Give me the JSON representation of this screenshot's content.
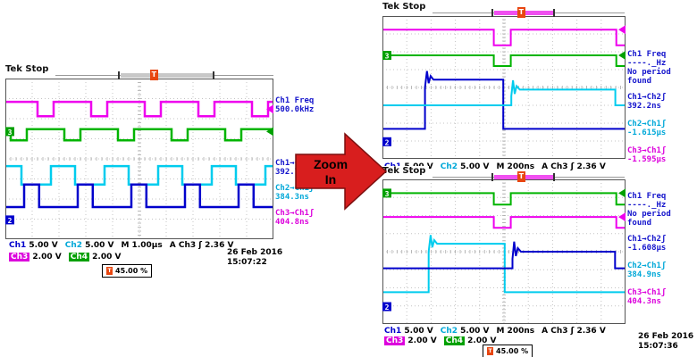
{
  "figure": {
    "arrow": {
      "line1": "Zoom",
      "line2": "In",
      "fill": "#d81e1e",
      "outline": "#7c0f0f"
    }
  },
  "scopes": [
    {
      "name": "full-view",
      "header_label": "Tek Stop",
      "topbar": {
        "seg_from": 0.3,
        "seg_to": 0.72,
        "seg_color": "#c8c8c8",
        "trigger_x": 0.45
      },
      "readouts": [
        {
          "color": "#1414cc",
          "lines": [
            "Ch1 Freq",
            "500.0kHz"
          ]
        },
        {
          "color": "#1414cc",
          "lines": [
            "Ch1→Ch2ʃ",
            "392.7ns"
          ]
        },
        {
          "color": "#00a8d8",
          "lines": [
            "Ch2→Ch1ʃ",
            "384.3ns"
          ]
        },
        {
          "color": "#dc00dc",
          "lines": [
            "Ch3→Ch1ʃ",
            "404.8ns"
          ]
        }
      ],
      "status": {
        "ch1_label": "Ch1",
        "ch1_scale": "5.00 V",
        "ch2_label": "Ch2",
        "ch2_scale": "5.00 V",
        "timebase": "M 1.00µs",
        "trigger": "A Ch3 ʃ 2.36 V",
        "ch3_label": "Ch3",
        "ch3_scale": "2.00 V",
        "ch4_label": "Ch4",
        "ch4_scale": "2.00 V",
        "trig_pos": "45.00 %",
        "date": "26 Feb 2016",
        "time": "15:07:22"
      },
      "plot": {
        "traces": [
          {
            "channel": "Ch4",
            "type": "square",
            "color": "#ee00ee",
            "yHigh": 0.145,
            "yLow": 0.235,
            "period": 0.2,
            "duty": 0.7,
            "phase": 0.1,
            "width": 2.5
          },
          {
            "channel": "Ch3",
            "type": "square",
            "color": "#00b400",
            "yHigh": 0.315,
            "yLow": 0.385,
            "period": 0.2,
            "duty": 0.7,
            "phase": 0.6,
            "width": 2.5
          },
          {
            "channel": "Ch2",
            "type": "square",
            "color": "#00ccee",
            "yHigh": 0.545,
            "yLow": 0.66,
            "period": 0.2,
            "duty": 0.45,
            "phase": 0.15,
            "width": 2.5
          },
          {
            "channel": "Ch1",
            "type": "square",
            "color": "#0000cc",
            "yHigh": 0.66,
            "yLow": 0.8,
            "period": 0.2,
            "duty": 0.28,
            "phase": 0.65,
            "width": 2.5
          }
        ],
        "left_markers": [
          {
            "label": "3",
            "color": "#00a000",
            "y": 0.33
          },
          {
            "label": "2",
            "color": "#0000cc",
            "y": 0.88
          }
        ],
        "right_markers": [
          {
            "color": "#ee00ee",
            "y": 0.19
          },
          {
            "color": "#00a000",
            "y": 0.33
          }
        ]
      }
    },
    {
      "name": "zoom-top",
      "header_label": "Tek Stop",
      "topbar": {
        "seg_from": 0.32,
        "seg_to": 0.63,
        "seg_color": "#f050f0",
        "trigger_x": 0.46
      },
      "readouts": [
        {
          "color": "#1414cc",
          "lines": [
            "Ch1 Freq",
            "----._Hz",
            "No period",
            "found"
          ]
        },
        {
          "color": "#1414cc",
          "lines": [
            "Ch1→Ch2ʃ",
            "392.2ns"
          ]
        },
        {
          "color": "#00a8d8",
          "lines": [
            "Ch2→Ch1ʃ",
            "-1.615µs"
          ]
        },
        {
          "color": "#dc00dc",
          "lines": [
            "Ch3→Ch1ʃ",
            "-1.595µs"
          ]
        }
      ],
      "status": {
        "ch1_label": "Ch1",
        "ch1_scale": "5.00 V",
        "ch2_label": "Ch2",
        "ch2_scale": "5.00 V",
        "timebase": "M 200ns",
        "trigger": "A Ch3 ʃ 2.36 V"
      },
      "plot": {
        "traces": [
          {
            "channel": "Ch4",
            "type": "points",
            "color": "#ee00ee",
            "width": 2,
            "points": [
              [
                0,
                0.095
              ],
              [
                0.458,
                0.095
              ],
              [
                0.458,
                0.205
              ],
              [
                0.528,
                0.205
              ],
              [
                0.528,
                0.095
              ],
              [
                0.962,
                0.095
              ],
              [
                0.962,
                0.205
              ],
              [
                1,
                0.205
              ]
            ]
          },
          {
            "channel": "Ch3",
            "type": "points",
            "color": "#00b400",
            "width": 2,
            "points": [
              [
                0,
                0.275
              ],
              [
                0.458,
                0.275
              ],
              [
                0.458,
                0.35
              ],
              [
                0.528,
                0.35
              ],
              [
                0.528,
                0.275
              ],
              [
                0.962,
                0.275
              ],
              [
                0.962,
                0.35
              ],
              [
                1,
                0.35
              ]
            ]
          },
          {
            "channel": "Ch1",
            "type": "points",
            "color": "#0000cc",
            "width": 2,
            "points": [
              [
                0,
                0.79
              ],
              [
                0.175,
                0.79
              ],
              [
                0.175,
                0.5
              ],
              [
                0.183,
                0.385
              ],
              [
                0.19,
                0.47
              ],
              [
                0.198,
                0.42
              ],
              [
                0.21,
                0.445
              ],
              [
                0.497,
                0.445
              ],
              [
                0.497,
                0.79
              ],
              [
                1,
                0.79
              ]
            ]
          },
          {
            "channel": "Ch2",
            "type": "points",
            "color": "#00ccee",
            "width": 2,
            "points": [
              [
                0,
                0.625
              ],
              [
                0.53,
                0.625
              ],
              [
                0.53,
                0.56
              ],
              [
                0.537,
                0.45
              ],
              [
                0.544,
                0.545
              ],
              [
                0.552,
                0.49
              ],
              [
                0.565,
                0.515
              ],
              [
                0.958,
                0.515
              ],
              [
                0.958,
                0.625
              ],
              [
                1,
                0.625
              ]
            ]
          }
        ],
        "left_markers": [
          {
            "label": "3",
            "color": "#00a000",
            "y": 0.275
          },
          {
            "label": "2",
            "color": "#0000cc",
            "y": 0.88
          }
        ],
        "right_markers": [
          {
            "color": "#ee00ee",
            "y": 0.095
          },
          {
            "color": "#00a000",
            "y": 0.275
          }
        ]
      }
    },
    {
      "name": "zoom-bottom",
      "header_label": "Tek Stop",
      "topbar": {
        "seg_from": 0.32,
        "seg_to": 0.63,
        "seg_color": "#f050f0",
        "trigger_x": 0.46
      },
      "readouts": [
        {
          "color": "#1414cc",
          "lines": [
            "Ch1 Freq",
            "----._Hz",
            "No period",
            "found"
          ]
        },
        {
          "color": "#1414cc",
          "lines": [
            "Ch1→Ch2ʃ",
            "-1.608µs"
          ]
        },
        {
          "color": "#00a8d8",
          "lines": [
            "Ch2→Ch1ʃ",
            "384.9ns"
          ]
        },
        {
          "color": "#dc00dc",
          "lines": [
            "Ch3→Ch1ʃ",
            "404.3ns"
          ]
        }
      ],
      "status": {
        "ch1_label": "Ch1",
        "ch1_scale": "5.00 V",
        "ch2_label": "Ch2",
        "ch2_scale": "5.00 V",
        "timebase": "M 200ns",
        "trigger": "A Ch3 ʃ 2.36 V",
        "ch3_label": "Ch3",
        "ch3_scale": "2.00 V",
        "ch4_label": "Ch4",
        "ch4_scale": "2.00 V",
        "trig_pos": "45.00 %",
        "date": "26 Feb 2016",
        "time": "15:07:36"
      },
      "plot": {
        "traces": [
          {
            "channel": "Ch3",
            "type": "points",
            "color": "#00b400",
            "width": 2,
            "points": [
              [
                0,
                0.095
              ],
              [
                0.458,
                0.095
              ],
              [
                0.458,
                0.175
              ],
              [
                0.528,
                0.175
              ],
              [
                0.528,
                0.095
              ],
              [
                0.962,
                0.095
              ],
              [
                0.962,
                0.175
              ],
              [
                1,
                0.175
              ]
            ]
          },
          {
            "channel": "Ch4",
            "type": "points",
            "color": "#ee00ee",
            "width": 2,
            "points": [
              [
                0,
                0.26
              ],
              [
                0.458,
                0.26
              ],
              [
                0.458,
                0.335
              ],
              [
                0.528,
                0.335
              ],
              [
                0.528,
                0.26
              ],
              [
                0.962,
                0.26
              ],
              [
                0.962,
                0.335
              ],
              [
                1,
                0.335
              ]
            ]
          },
          {
            "channel": "Ch2",
            "type": "points",
            "color": "#00ccee",
            "width": 2,
            "points": [
              [
                0,
                0.78
              ],
              [
                0.19,
                0.78
              ],
              [
                0.19,
                0.5
              ],
              [
                0.198,
                0.385
              ],
              [
                0.205,
                0.47
              ],
              [
                0.213,
                0.42
              ],
              [
                0.225,
                0.445
              ],
              [
                0.503,
                0.445
              ],
              [
                0.503,
                0.78
              ],
              [
                1,
                0.78
              ]
            ]
          },
          {
            "channel": "Ch1",
            "type": "points",
            "color": "#0000cc",
            "width": 2,
            "points": [
              [
                0,
                0.615
              ],
              [
                0.535,
                0.615
              ],
              [
                0.535,
                0.55
              ],
              [
                0.542,
                0.43
              ],
              [
                0.549,
                0.53
              ],
              [
                0.557,
                0.475
              ],
              [
                0.57,
                0.5
              ],
              [
                0.957,
                0.5
              ],
              [
                0.957,
                0.615
              ],
              [
                1,
                0.615
              ]
            ]
          }
        ],
        "left_markers": [
          {
            "label": "3",
            "color": "#00a000",
            "y": 0.095
          },
          {
            "label": "2",
            "color": "#0000cc",
            "y": 0.88
          }
        ],
        "right_markers": [
          {
            "color": "#00a000",
            "y": 0.095
          },
          {
            "color": "#ee00ee",
            "y": 0.26
          }
        ]
      }
    }
  ]
}
